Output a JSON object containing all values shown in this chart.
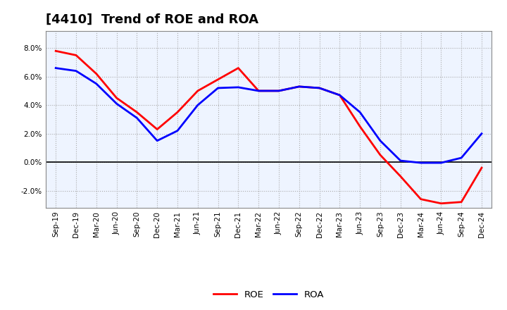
{
  "title": "[4410]  Trend of ROE and ROA",
  "x_labels": [
    "Sep-19",
    "Dec-19",
    "Mar-20",
    "Jun-20",
    "Sep-20",
    "Dec-20",
    "Mar-21",
    "Jun-21",
    "Sep-21",
    "Dec-21",
    "Mar-22",
    "Jun-22",
    "Sep-22",
    "Dec-22",
    "Mar-23",
    "Jun-23",
    "Sep-23",
    "Dec-23",
    "Mar-24",
    "Jun-24",
    "Sep-24",
    "Dec-24"
  ],
  "roe": [
    7.8,
    7.5,
    6.2,
    4.5,
    3.5,
    2.3,
    3.5,
    5.0,
    5.8,
    6.6,
    5.0,
    5.0,
    5.3,
    5.2,
    4.7,
    2.5,
    0.5,
    -1.0,
    -2.6,
    -2.9,
    -2.8,
    -0.4
  ],
  "roa": [
    6.6,
    6.4,
    5.5,
    4.1,
    3.1,
    1.5,
    2.2,
    4.0,
    5.2,
    5.25,
    5.0,
    5.0,
    5.3,
    5.2,
    4.7,
    3.5,
    1.5,
    0.1,
    -0.05,
    -0.05,
    0.3,
    2.0
  ],
  "roe_color": "#FF0000",
  "roa_color": "#0000FF",
  "background_color": "#FFFFFF",
  "plot_bg_color": "#EEF4FF",
  "grid_color": "#AAAAAA",
  "ylim": [
    -3.2,
    9.2
  ],
  "yticks": [
    -2.0,
    0.0,
    2.0,
    4.0,
    6.0,
    8.0
  ],
  "line_width": 2.0,
  "title_fontsize": 13,
  "tick_fontsize": 7.5,
  "legend_fontsize": 9.5
}
